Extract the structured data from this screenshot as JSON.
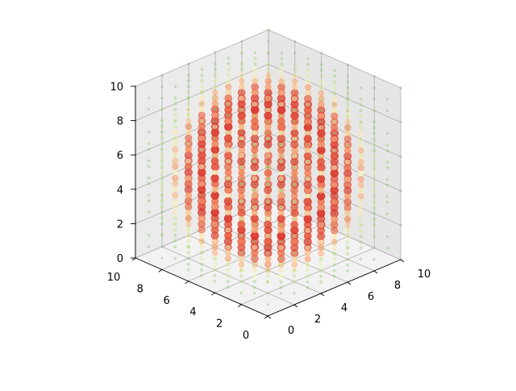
{
  "chart_data": {
    "type": "scatter",
    "projection": "3d",
    "title": "",
    "xlabel": "",
    "ylabel": "",
    "zlabel": "",
    "xlim": [
      0,
      10
    ],
    "ylim": [
      0,
      10
    ],
    "zlim": [
      0,
      10
    ],
    "x_ticks": [
      "0",
      "2",
      "4",
      "6",
      "8",
      "10"
    ],
    "y_ticks": [
      "0",
      "2",
      "4",
      "6",
      "8",
      "10"
    ],
    "z_ticks": [
      "0",
      "2",
      "4",
      "6",
      "8",
      "10"
    ],
    "grid": true,
    "colormap": "RdYlGn",
    "marker_alpha": 0.3,
    "grid_spacing": 1,
    "value_description": "points on an integer grid 0..10 in x, y, z; colour and size encode radial distance from the cube centre (5,5,5), peaking in a red shell near radius 4",
    "sample_points": [
      {
        "x": 5,
        "y": 5,
        "z": 9,
        "color": "#e08060"
      },
      {
        "x": 9,
        "y": 5,
        "z": 5,
        "color": "#c83a3a"
      },
      {
        "x": 5,
        "y": 9,
        "z": 5,
        "color": "#c83a3a"
      },
      {
        "x": 1,
        "y": 5,
        "z": 5,
        "color": "#c83a3a"
      },
      {
        "x": 5,
        "y": 1,
        "z": 5,
        "color": "#c83a3a"
      },
      {
        "x": 5,
        "y": 5,
        "z": 1,
        "color": "#c83a3a"
      },
      {
        "x": 0,
        "y": 0,
        "z": 0,
        "color": "#a8d39a"
      },
      {
        "x": 10,
        "y": 10,
        "z": 10,
        "color": "#a8d39a"
      }
    ]
  }
}
